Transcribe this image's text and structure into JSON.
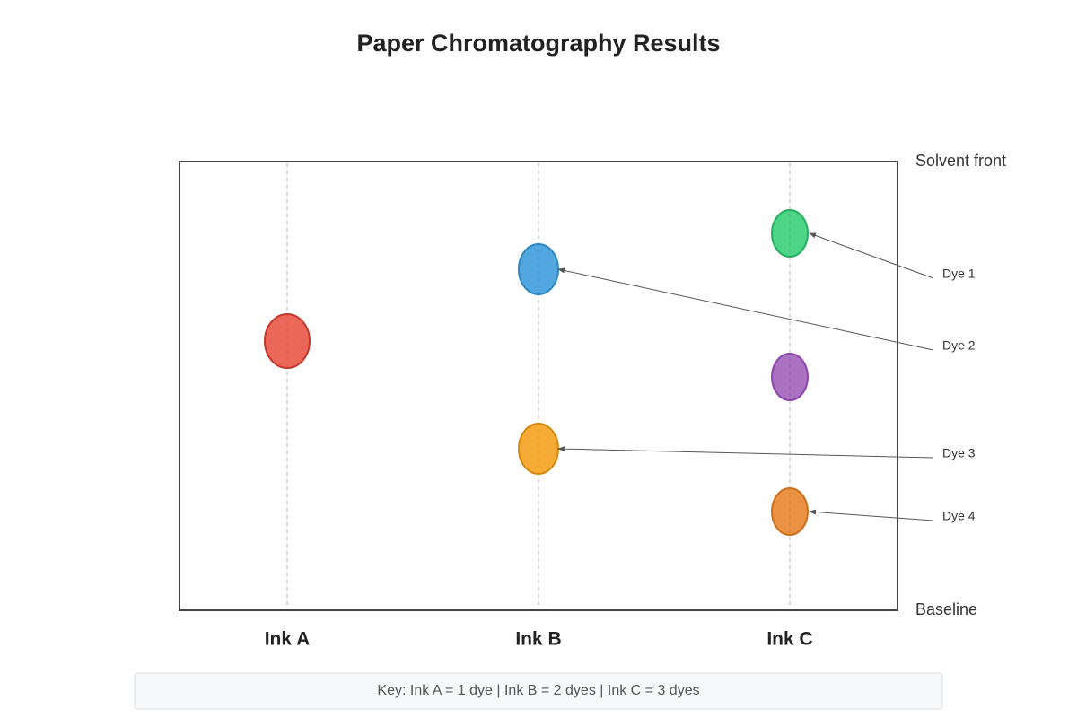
{
  "title": "Paper Chromatography Results",
  "solvent_front": "Solvent front",
  "baseline": "Baseline",
  "lanes": [
    "Ink A",
    "Ink B",
    "Ink C"
  ],
  "dye_labels": [
    "Dye 1",
    "Dye 2",
    "Dye 3",
    "Dye 4"
  ],
  "key": "Key: Ink A = 1 dye | Ink B = 2 dyes | Ink C = 3 dyes"
}
